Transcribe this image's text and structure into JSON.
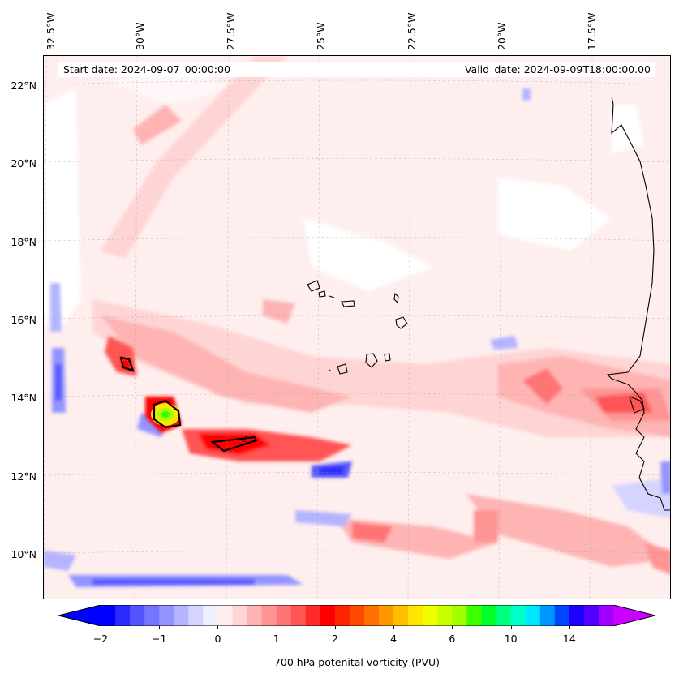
{
  "header": {
    "start_date": "Start date: 2024-09-07_00:00:00",
    "valid_date": "Valid_date: 2024-09-09T18:00:00.00"
  },
  "longitude_labels": [
    "32.5°W",
    "30°W",
    "27.5°W",
    "25°W",
    "22.5°W",
    "20°W",
    "17.5°W"
  ],
  "latitude_labels": [
    "22°N",
    "20°N",
    "18°N",
    "16°N",
    "14°N",
    "12°N",
    "10°N"
  ],
  "map": {
    "field": "700 hPa potential vorticity",
    "contour_label": "2",
    "extent": {
      "lon_min": -33,
      "lon_max": -15.5,
      "lat_min": 9,
      "lat_max": 22.7
    }
  },
  "colorbar": {
    "label": "700 hPa potenital vorticity (PVU)",
    "ticks": [
      "−2",
      "−1",
      "0",
      "1",
      "2",
      "4",
      "6",
      "10",
      "14"
    ],
    "colors": [
      "#0000ff",
      "#2b2bff",
      "#5555ff",
      "#7474ff",
      "#9494ff",
      "#b4b4ff",
      "#d4d4ff",
      "#eeeeff",
      "#ffeeee",
      "#ffd4d4",
      "#ffb4b4",
      "#ff9494",
      "#ff7474",
      "#ff5555",
      "#ff2b2b",
      "#ff0000",
      "#ff2400",
      "#ff4800",
      "#ff7000",
      "#ff9800",
      "#ffbf00",
      "#ffe600",
      "#f0ff00",
      "#c8ff00",
      "#a0ff00",
      "#3cff00",
      "#00ff28",
      "#00ff7c",
      "#00ffc8",
      "#00e6ff",
      "#0096ff",
      "#0046ff",
      "#1e00ff",
      "#5000ff",
      "#a000ff"
    ],
    "extend": "both",
    "extend_colors": {
      "low": "#0000ff",
      "high": "#cc00ff"
    }
  }
}
